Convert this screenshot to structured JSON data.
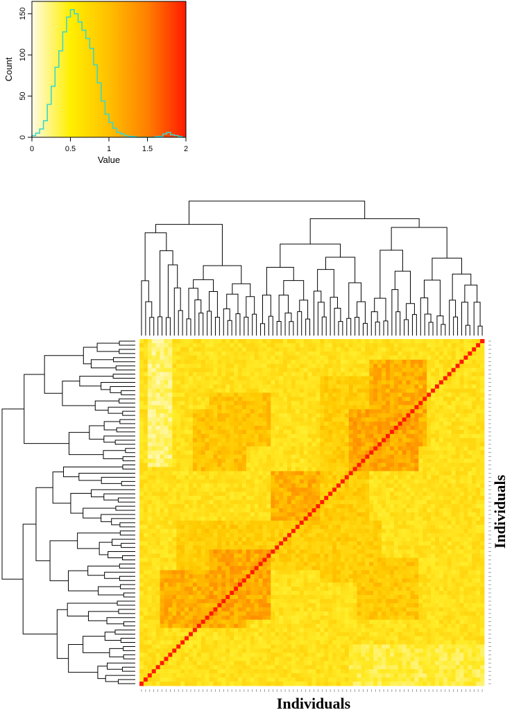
{
  "chart_data": [
    {
      "type": "histogram",
      "role": "color-key",
      "xlabel": "Value",
      "ylabel": "Count",
      "xlim": [
        0,
        2
      ],
      "ylim": [
        0,
        165
      ],
      "x_ticks": [
        "0",
        "0.5",
        "1",
        "1.5",
        "2"
      ],
      "y_ticks": [
        "0",
        "50",
        "100",
        "150"
      ],
      "background": "color gradient from white (0) through yellow and orange to red (2)",
      "curve_color": "#3ed6c8",
      "x": [
        0.05,
        0.1,
        0.15,
        0.2,
        0.25,
        0.3,
        0.35,
        0.4,
        0.45,
        0.5,
        0.55,
        0.6,
        0.65,
        0.7,
        0.75,
        0.8,
        0.85,
        0.9,
        0.95,
        1.0,
        1.05,
        1.1,
        1.15,
        1.2,
        1.25,
        1.3,
        1.35,
        1.4,
        1.5,
        1.6,
        1.7,
        1.75,
        1.8,
        1.85,
        1.9,
        1.95,
        2.0
      ],
      "values": [
        2,
        5,
        10,
        20,
        40,
        62,
        85,
        105,
        128,
        146,
        155,
        150,
        140,
        130,
        120,
        108,
        88,
        66,
        44,
        28,
        18,
        11,
        6,
        4,
        2,
        1,
        1,
        0,
        0,
        0,
        1,
        4,
        6,
        3,
        2,
        1,
        0
      ]
    },
    {
      "type": "heatmap",
      "xlabel": "Individuals",
      "ylabel": "Individuals",
      "colors": {
        "low": "#fffde0",
        "mid": "#ffe600",
        "high": "#ff1a00"
      },
      "diagonal_value": 2,
      "dendrograms": [
        "top",
        "left"
      ],
      "blocks": [
        {
          "rows": [
            0.2,
            0.38
          ],
          "cols": [
            0.6,
            0.8
          ],
          "value": 1.2
        },
        {
          "rows": [
            0.2,
            0.38
          ],
          "cols": [
            0.15,
            0.3
          ],
          "value": 1.0
        },
        {
          "rows": [
            0.38,
            0.52
          ],
          "cols": [
            0.38,
            0.52
          ],
          "value": 1.15
        },
        {
          "rows": [
            0.66,
            0.83
          ],
          "cols": [
            0.05,
            0.3
          ],
          "value": 1.15
        },
        {
          "rows": [
            0.66,
            0.8
          ],
          "cols": [
            0.62,
            0.8
          ],
          "value": 0.95
        },
        {
          "rows": [
            0.52,
            0.66
          ],
          "cols": [
            0.1,
            0.7
          ],
          "value": 0.9
        }
      ]
    }
  ]
}
